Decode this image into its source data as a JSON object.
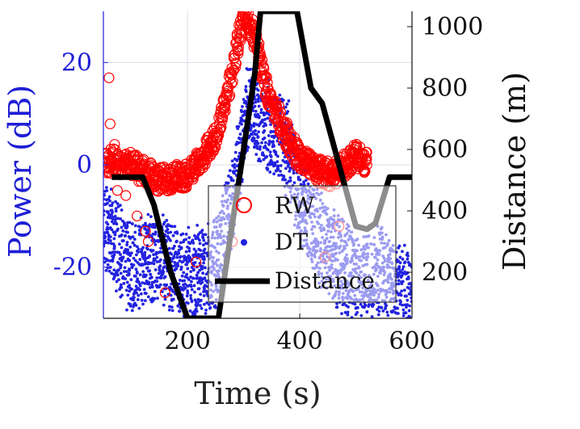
{
  "chart_data": {
    "type": "scatter",
    "xlabel": "Time (s)",
    "ylabel_left": "Power (dB)",
    "ylabel_right": "Distance (m)",
    "xlim": [
      50,
      600
    ],
    "ylim_left": [
      -30,
      30
    ],
    "ylim_right": [
      50,
      1050
    ],
    "x_ticks": [
      200,
      400,
      600
    ],
    "y_left_ticks": [
      -20,
      0,
      20
    ],
    "y_right_ticks": [
      200,
      400,
      600,
      800,
      1000
    ],
    "x_tick_labels": [
      "200",
      "400",
      "600"
    ],
    "y_left_tick_labels": [
      "-20",
      "0",
      "20"
    ],
    "y_right_tick_labels": [
      "200",
      "400",
      "600",
      "800",
      "1000"
    ],
    "grid": true,
    "legend_position": "bottom-center",
    "colors": {
      "rw": "#ff0000",
      "dt": "#2222e0",
      "distance": "#000000",
      "left_axis": "#1f1fd6"
    },
    "series": [
      {
        "name": "RW",
        "axis": "left",
        "marker": "circle-open",
        "envelope_x": [
          50,
          100,
          150,
          200,
          250,
          280,
          300,
          320,
          340,
          360,
          380,
          400,
          430,
          460,
          500,
          520
        ],
        "envelope_y": [
          1,
          0,
          -3,
          -2,
          5,
          18,
          30,
          25,
          15,
          10,
          5,
          1,
          -1,
          -2,
          2,
          0
        ]
      },
      {
        "name": "DT",
        "axis": "left",
        "marker": "dot",
        "envelope_x": [
          50,
          100,
          150,
          200,
          250,
          280,
          300,
          310,
          320,
          340,
          360,
          380,
          400,
          450,
          500,
          550,
          600
        ],
        "envelope_y": [
          -10,
          -18,
          -15,
          -20,
          -18,
          -5,
          8,
          15,
          12,
          10,
          8,
          5,
          -5,
          -15,
          -20,
          -18,
          -25
        ]
      },
      {
        "name": "Distance",
        "axis": "right",
        "x": [
          65,
          120,
          140,
          170,
          200,
          230,
          255,
          275,
          300,
          320,
          330,
          395,
          420,
          440,
          500,
          520,
          535,
          560,
          600
        ],
        "y": [
          510,
          510,
          420,
          200,
          50,
          50,
          50,
          300,
          600,
          850,
          1050,
          1050,
          800,
          750,
          350,
          340,
          360,
          510,
          510
        ]
      }
    ]
  }
}
